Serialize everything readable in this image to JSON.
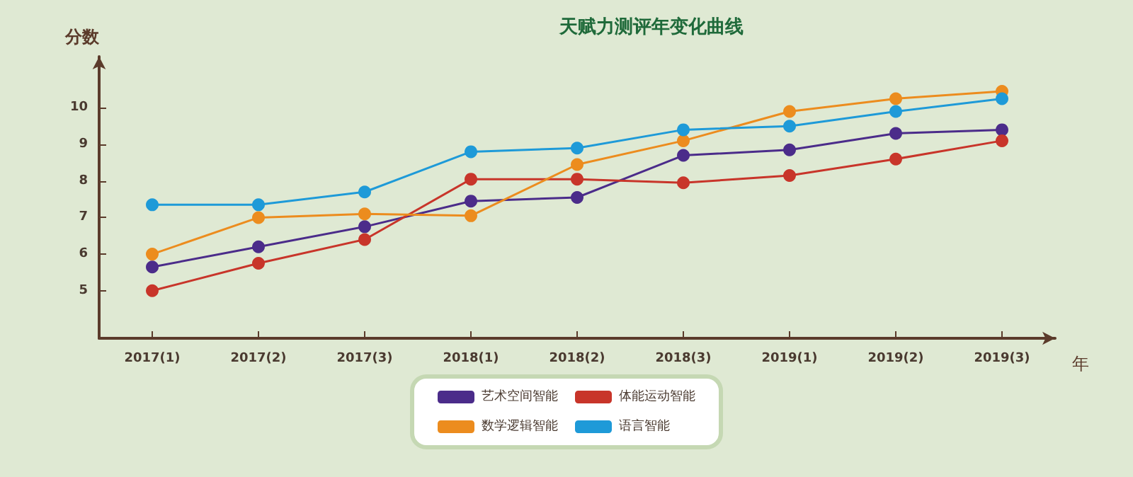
{
  "chart_data": {
    "type": "line",
    "title": "天赋力测评年变化曲线",
    "xlabel": "年",
    "ylabel": "分数",
    "categories": [
      "2017(1)",
      "2017(2)",
      "2017(3)",
      "2018(1)",
      "2018(2)",
      "2018(3)",
      "2019(1)",
      "2019(2)",
      "2019(3)"
    ],
    "series": [
      {
        "name": "艺术空间智能",
        "color": "#4b2c8a",
        "values": [
          5.65,
          6.2,
          6.75,
          7.45,
          7.55,
          8.7,
          8.85,
          9.3,
          9.4
        ]
      },
      {
        "name": "体能运动智能",
        "color": "#c8352a",
        "values": [
          5.0,
          5.75,
          6.4,
          8.05,
          8.05,
          7.95,
          8.15,
          8.6,
          9.1
        ]
      },
      {
        "name": "数学逻辑智能",
        "color": "#ec8c1e",
        "values": [
          6.0,
          7.0,
          7.1,
          7.05,
          8.45,
          9.1,
          9.9,
          10.25,
          10.45
        ]
      },
      {
        "name": "语言智能",
        "color": "#1e9ad8",
        "values": [
          7.35,
          7.35,
          7.7,
          8.8,
          8.9,
          9.4,
          9.5,
          9.9,
          10.25
        ]
      }
    ],
    "ylim": [
      3.7,
      11.4
    ],
    "yticks": [
      5,
      6,
      7,
      8,
      9,
      10
    ],
    "grid": false,
    "legend": "bottom",
    "marker": "circle",
    "line_style": "solid"
  }
}
